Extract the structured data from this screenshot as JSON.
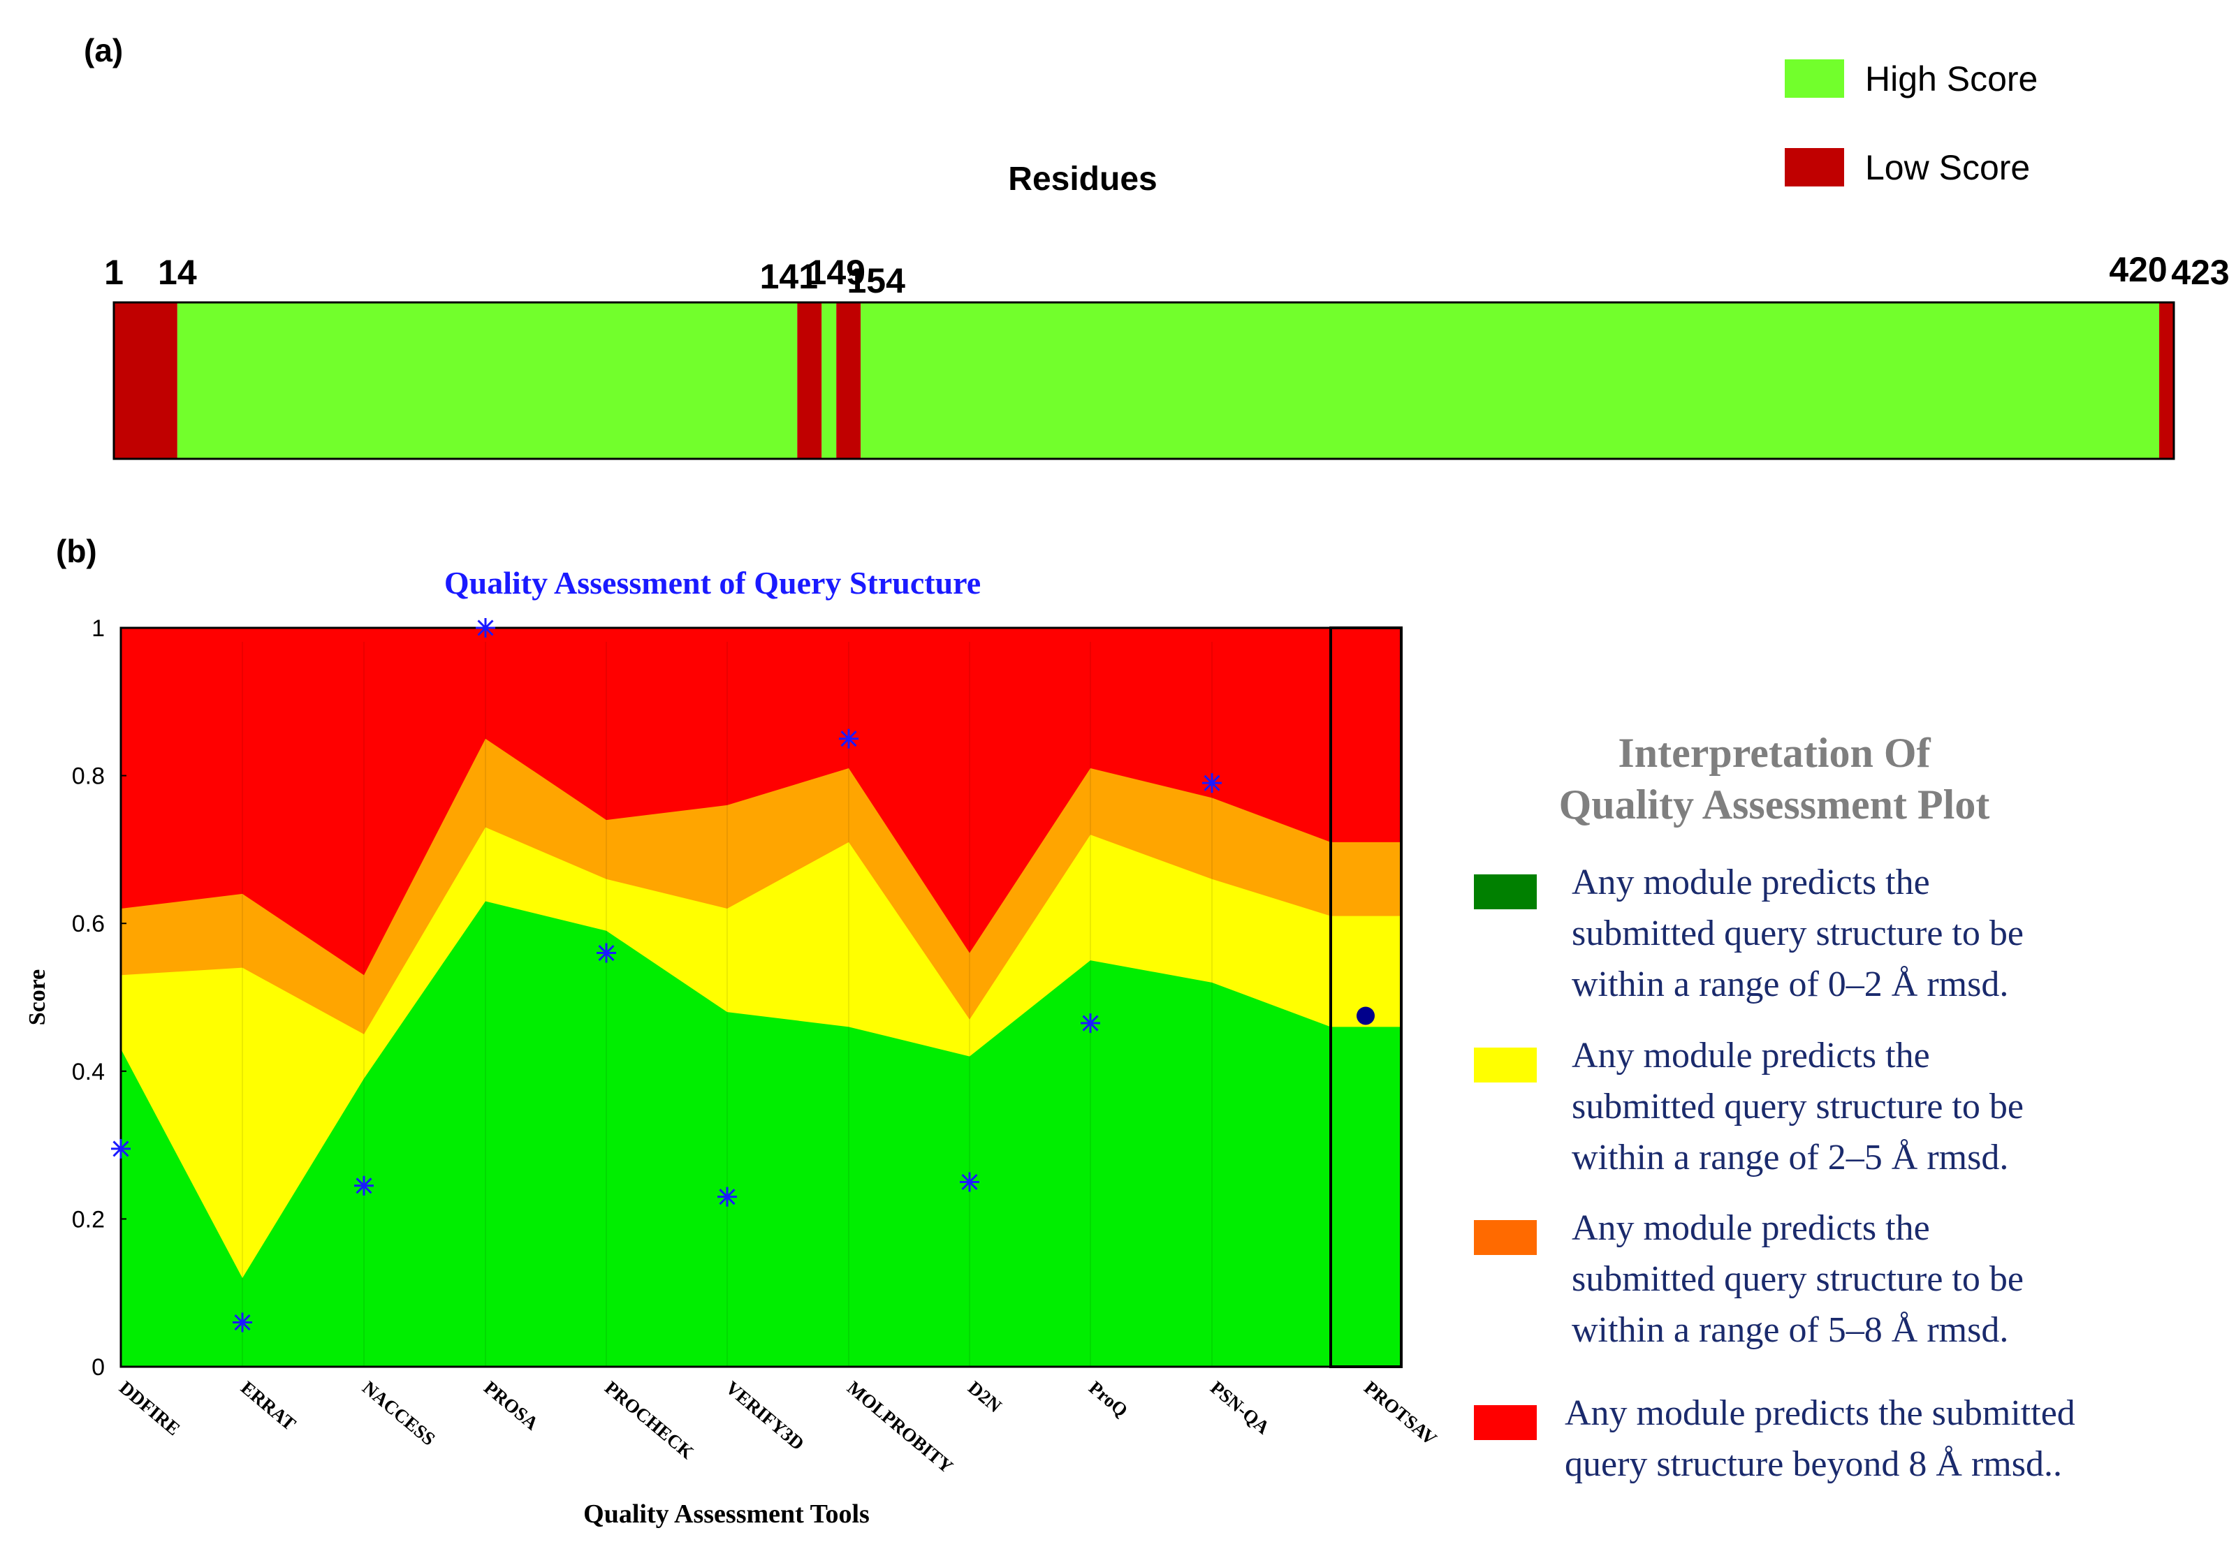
{
  "panel_a": {
    "panel_label": "(a)",
    "title": "Residues",
    "legend": [
      {
        "label": "High Score",
        "color": "#72ff2c"
      },
      {
        "label": "Low Score",
        "color": "#c00000"
      }
    ],
    "residue_range": [
      1,
      423
    ],
    "segments": [
      {
        "start": 1,
        "end": 14,
        "score": "low"
      },
      {
        "start": 14,
        "end": 141,
        "score": "high"
      },
      {
        "start": 141,
        "end": 146,
        "score": "low"
      },
      {
        "start": 146,
        "end": 149,
        "score": "high"
      },
      {
        "start": 149,
        "end": 154,
        "score": "low"
      },
      {
        "start": 154,
        "end": 420,
        "score": "high"
      },
      {
        "start": 420,
        "end": 423,
        "score": "low"
      }
    ],
    "ticks": [
      "1",
      "14",
      "141",
      "149",
      "154",
      "420",
      "423"
    ]
  },
  "panel_b": {
    "panel_label": "(b)",
    "legend_title_line1": "Interpretation Of",
    "legend_title_line2": "Quality Assessment Plot",
    "legend_items": [
      {
        "color": "#008000",
        "lines": [
          "Any module predicts the",
          "submitted query structure to be",
          "within a range of 0–2 Å rmsd."
        ]
      },
      {
        "color": "#ffff00",
        "lines": [
          "Any module predicts the",
          "submitted query structure to be",
          "within a range of 2–5 Å rmsd."
        ]
      },
      {
        "color": "#ff6a00",
        "lines": [
          "Any module predicts the",
          "submitted query structure to be",
          "within a range of 5–8 Å rmsd."
        ]
      },
      {
        "color": "#ff0000",
        "lines": [
          "Any module predicts the submitted",
          "query structure  beyond 8 Å rmsd.."
        ]
      }
    ]
  },
  "chart_data": {
    "type": "area",
    "title": "Quality Assessment of Query Structure",
    "xlabel": "Quality Assessment Tools",
    "ylabel": "Score",
    "ylim": [
      0,
      1
    ],
    "yticks": [
      "0",
      "0.2",
      "0.4",
      "0.6",
      "0.8",
      "1"
    ],
    "categories": [
      "DDFIRE",
      "ERRAT",
      "NACCESS",
      "PROSA",
      "PROCHECK",
      "VERIFY3D",
      "MOLPROBITY",
      "D2N",
      "ProQ",
      "PSN-QA",
      "PROTSAV"
    ],
    "bands": [
      {
        "name": "0–2 Å rmsd",
        "color": "#00ee00",
        "upper": [
          0.43,
          0.12,
          0.39,
          0.63,
          0.59,
          0.48,
          0.46,
          0.42,
          0.55,
          0.52,
          0.46
        ]
      },
      {
        "name": "2–5 Å rmsd",
        "color": "#ffff00",
        "upper": [
          0.53,
          0.54,
          0.45,
          0.73,
          0.66,
          0.62,
          0.71,
          0.47,
          0.72,
          0.66,
          0.61
        ]
      },
      {
        "name": "5–8 Å rmsd",
        "color": "#ffa500",
        "upper": [
          0.62,
          0.64,
          0.53,
          0.85,
          0.74,
          0.76,
          0.81,
          0.56,
          0.81,
          0.77,
          0.71
        ]
      },
      {
        "name": "beyond 8 Å rmsd",
        "color": "#ff0000",
        "upper": [
          1,
          1,
          1,
          1,
          1,
          1,
          1,
          1,
          1,
          1,
          1
        ]
      }
    ],
    "query_scores": {
      "name": "Query structure",
      "tools": [
        "DDFIRE",
        "ERRAT",
        "NACCESS",
        "PROSA",
        "PROCHECK",
        "VERIFY3D",
        "MOLPROBITY",
        "D2N",
        "ProQ",
        "PSN-QA"
      ],
      "values": [
        0.295,
        0.06,
        0.245,
        1.0,
        0.56,
        0.23,
        0.85,
        0.25,
        0.465,
        0.79
      ],
      "marker": "asterisk",
      "color": "#1a1aff"
    },
    "protsav_score": {
      "tool": "PROTSAV",
      "value": 0.475,
      "marker": "dot",
      "color": "#00008b"
    }
  }
}
